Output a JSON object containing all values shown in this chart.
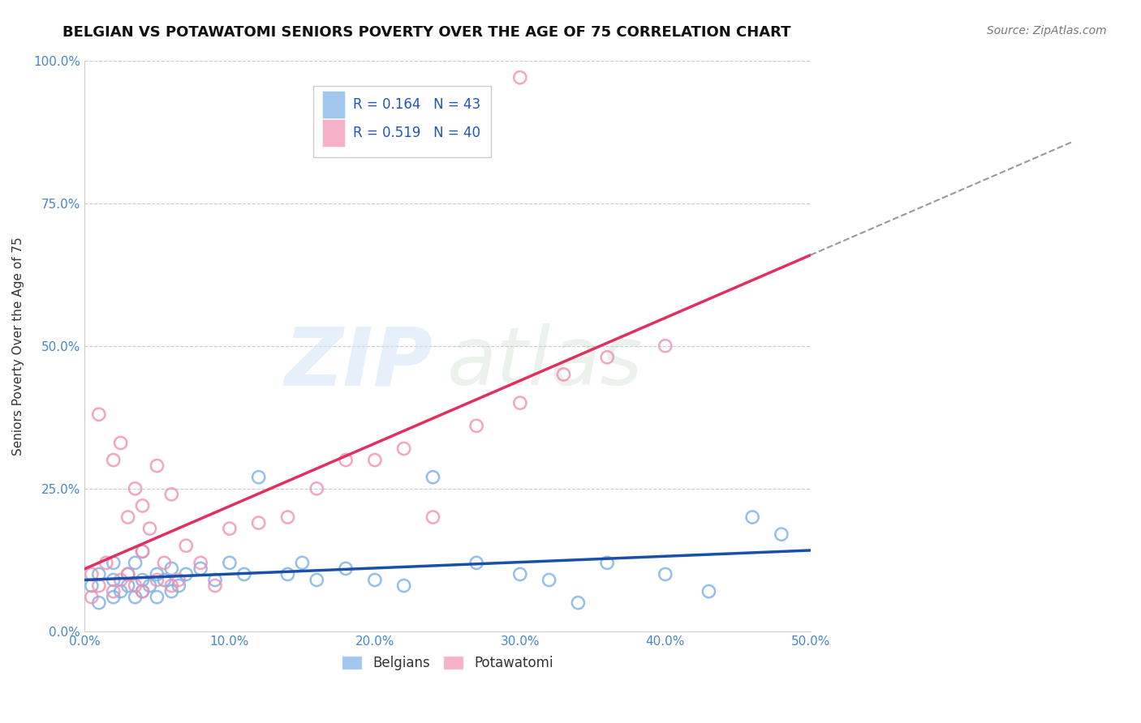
{
  "title": "BELGIAN VS POTAWATOMI SENIORS POVERTY OVER THE AGE OF 75 CORRELATION CHART",
  "source": "Source: ZipAtlas.com",
  "ylabel": "Seniors Poverty Over the Age of 75",
  "xlabel": "",
  "xlim": [
    0.0,
    0.5
  ],
  "ylim": [
    0.0,
    1.0
  ],
  "xticks": [
    0.0,
    0.1,
    0.2,
    0.3,
    0.4,
    0.5
  ],
  "yticks": [
    0.0,
    0.25,
    0.5,
    0.75,
    1.0
  ],
  "xticklabels": [
    "0.0%",
    "10.0%",
    "20.0%",
    "30.0%",
    "40.0%",
    "50.0%"
  ],
  "yticklabels": [
    "0.0%",
    "25.0%",
    "50.0%",
    "75.0%",
    "100.0%"
  ],
  "belgian_color": "#7ab0e8",
  "potawatomi_color": "#f090b0",
  "belgian_line_color": "#1a4faa",
  "potawatomi_line_color": "#e03060",
  "R_belgian": 0.164,
  "N_belgian": 43,
  "R_potawatomi": 0.519,
  "N_potawatomi": 40,
  "belgian_x": [
    0.005,
    0.01,
    0.01,
    0.02,
    0.02,
    0.02,
    0.025,
    0.03,
    0.03,
    0.035,
    0.035,
    0.04,
    0.04,
    0.04,
    0.045,
    0.05,
    0.05,
    0.055,
    0.06,
    0.06,
    0.065,
    0.07,
    0.08,
    0.09,
    0.1,
    0.11,
    0.12,
    0.14,
    0.15,
    0.16,
    0.18,
    0.2,
    0.22,
    0.24,
    0.27,
    0.3,
    0.32,
    0.34,
    0.36,
    0.4,
    0.43,
    0.46,
    0.48
  ],
  "belgian_y": [
    0.08,
    0.05,
    0.1,
    0.06,
    0.09,
    0.12,
    0.07,
    0.08,
    0.1,
    0.06,
    0.12,
    0.07,
    0.09,
    0.14,
    0.08,
    0.06,
    0.1,
    0.09,
    0.07,
    0.11,
    0.08,
    0.1,
    0.11,
    0.09,
    0.12,
    0.1,
    0.27,
    0.1,
    0.12,
    0.09,
    0.11,
    0.09,
    0.08,
    0.27,
    0.12,
    0.1,
    0.09,
    0.05,
    0.12,
    0.1,
    0.07,
    0.2,
    0.17
  ],
  "potawatomi_x": [
    0.005,
    0.005,
    0.01,
    0.01,
    0.015,
    0.02,
    0.02,
    0.025,
    0.025,
    0.03,
    0.03,
    0.035,
    0.035,
    0.04,
    0.04,
    0.04,
    0.045,
    0.05,
    0.05,
    0.055,
    0.06,
    0.06,
    0.065,
    0.07,
    0.08,
    0.09,
    0.1,
    0.12,
    0.14,
    0.16,
    0.18,
    0.2,
    0.22,
    0.24,
    0.27,
    0.3,
    0.33,
    0.36,
    0.4,
    0.3
  ],
  "potawatomi_y": [
    0.06,
    0.1,
    0.08,
    0.38,
    0.12,
    0.07,
    0.3,
    0.09,
    0.33,
    0.1,
    0.2,
    0.08,
    0.25,
    0.07,
    0.14,
    0.22,
    0.18,
    0.09,
    0.29,
    0.12,
    0.08,
    0.24,
    0.09,
    0.15,
    0.12,
    0.08,
    0.18,
    0.19,
    0.2,
    0.25,
    0.3,
    0.3,
    0.32,
    0.2,
    0.36,
    0.4,
    0.45,
    0.48,
    0.5,
    0.97
  ],
  "watermark_zip": "ZIP",
  "watermark_atlas": "atlas",
  "grid_color": "#c8c8d8",
  "background_color": "#ffffff",
  "title_fontsize": 13,
  "axis_label_fontsize": 11,
  "tick_fontsize": 11,
  "legend_fontsize": 12,
  "source_fontsize": 10
}
